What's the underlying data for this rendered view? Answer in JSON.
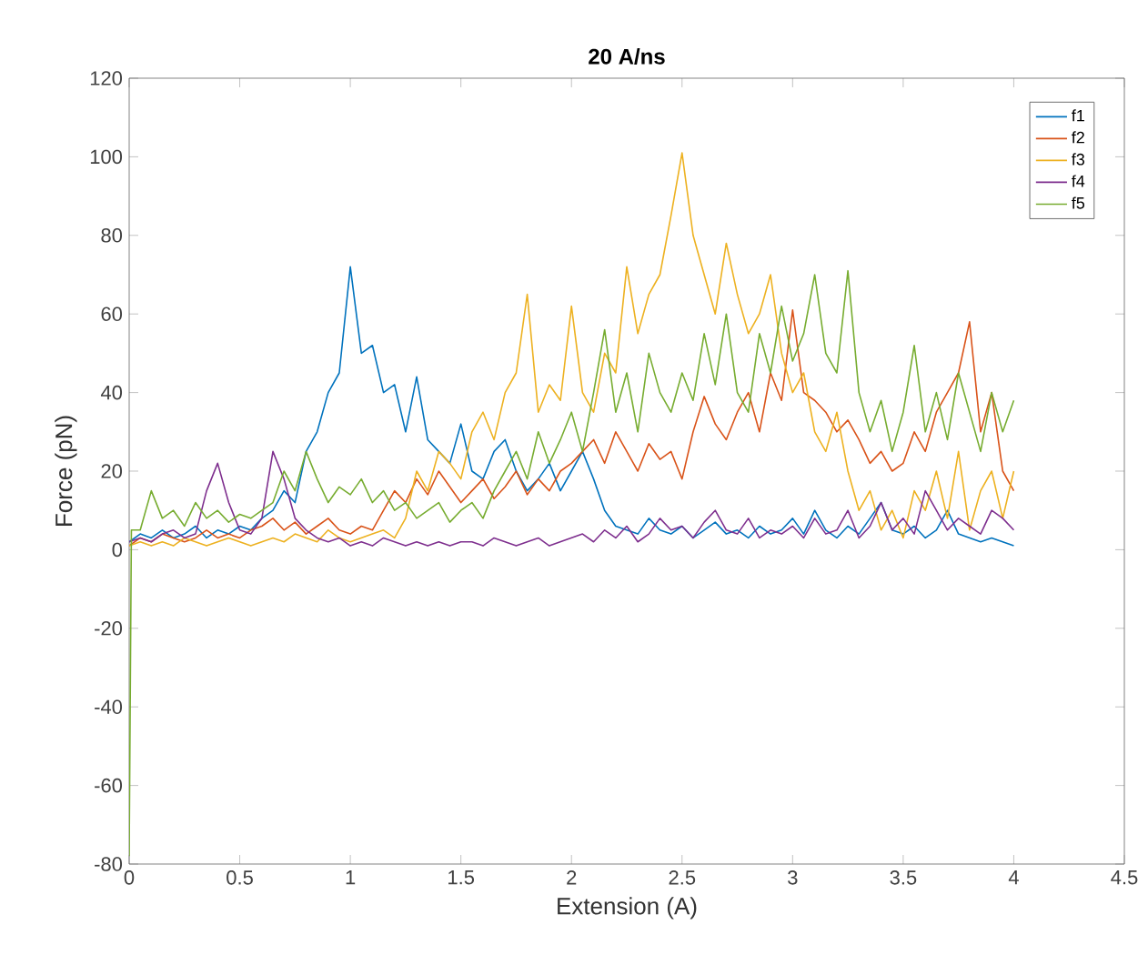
{
  "chart_data": {
    "type": "line",
    "title": "20 A/ns",
    "xlabel": "Extension (A)",
    "ylabel": "Force (pN)",
    "xlim": [
      0,
      4.5
    ],
    "ylim": [
      -80,
      120
    ],
    "xticks": [
      0,
      0.5,
      1,
      1.5,
      2,
      2.5,
      3,
      3.5,
      4,
      4.5
    ],
    "yticks": [
      -80,
      -60,
      -40,
      -20,
      0,
      20,
      40,
      60,
      80,
      100,
      120
    ],
    "grid": false,
    "legend": "top right",
    "marker": "none",
    "line_style": "solid",
    "x": [
      0,
      0.05,
      0.1,
      0.15,
      0.2,
      0.25,
      0.3,
      0.35,
      0.4,
      0.45,
      0.5,
      0.55,
      0.6,
      0.65,
      0.7,
      0.75,
      0.8,
      0.85,
      0.9,
      0.95,
      1,
      1.05,
      1.1,
      1.15,
      1.2,
      1.25,
      1.3,
      1.35,
      1.4,
      1.45,
      1.5,
      1.55,
      1.6,
      1.65,
      1.7,
      1.75,
      1.8,
      1.85,
      1.9,
      1.95,
      2,
      2.05,
      2.1,
      2.15,
      2.2,
      2.25,
      2.3,
      2.35,
      2.4,
      2.45,
      2.5,
      2.55,
      2.6,
      2.65,
      2.7,
      2.75,
      2.8,
      2.85,
      2.9,
      2.95,
      3,
      3.05,
      3.1,
      3.15,
      3.2,
      3.25,
      3.3,
      3.35,
      3.4,
      3.45,
      3.5,
      3.55,
      3.6,
      3.65,
      3.7,
      3.75,
      3.8,
      3.85,
      3.9,
      3.95,
      4
    ],
    "series": [
      {
        "name": "f1",
        "color": "#0072bd",
        "values": [
          2,
          4,
          3,
          5,
          3,
          4,
          6,
          3,
          5,
          4,
          6,
          5,
          8,
          10,
          15,
          12,
          25,
          30,
          40,
          45,
          72,
          50,
          52,
          40,
          42,
          30,
          44,
          28,
          25,
          22,
          32,
          20,
          18,
          25,
          28,
          20,
          15,
          18,
          22,
          15,
          20,
          25,
          18,
          10,
          6,
          5,
          4,
          8,
          5,
          4,
          6,
          3,
          5,
          7,
          4,
          5,
          3,
          6,
          4,
          5,
          8,
          4,
          10,
          5,
          3,
          6,
          4,
          8,
          12,
          5,
          4,
          6,
          3,
          5,
          10,
          4,
          3,
          2,
          3,
          2,
          1
        ]
      },
      {
        "name": "f2",
        "color": "#d95319",
        "values": [
          1,
          3,
          2,
          4,
          3,
          2,
          3,
          5,
          3,
          4,
          3,
          5,
          6,
          8,
          5,
          7,
          4,
          6,
          8,
          5,
          4,
          6,
          5,
          10,
          15,
          12,
          18,
          14,
          20,
          16,
          12,
          15,
          18,
          13,
          16,
          20,
          14,
          18,
          15,
          20,
          22,
          25,
          28,
          22,
          30,
          25,
          20,
          27,
          23,
          25,
          18,
          30,
          39,
          32,
          28,
          35,
          40,
          30,
          45,
          38,
          61,
          40,
          38,
          35,
          30,
          33,
          28,
          22,
          25,
          20,
          22,
          30,
          25,
          35,
          40,
          45,
          58,
          30,
          40,
          20,
          15
        ]
      },
      {
        "name": "f3",
        "color": "#edb120",
        "values": [
          1,
          2,
          1,
          2,
          1,
          3,
          2,
          1,
          2,
          3,
          2,
          1,
          2,
          3,
          2,
          4,
          3,
          2,
          5,
          3,
          2,
          3,
          4,
          5,
          3,
          8,
          20,
          15,
          25,
          22,
          18,
          30,
          35,
          28,
          40,
          45,
          65,
          35,
          42,
          38,
          62,
          40,
          35,
          50,
          45,
          72,
          55,
          65,
          70,
          85,
          101,
          80,
          70,
          60,
          78,
          65,
          55,
          60,
          70,
          50,
          40,
          45,
          30,
          25,
          35,
          20,
          10,
          15,
          5,
          10,
          3,
          15,
          10,
          20,
          8,
          25,
          5,
          15,
          20,
          8,
          20
        ]
      },
      {
        "name": "f4",
        "color": "#7e2f8e",
        "values": [
          2,
          3,
          2,
          4,
          5,
          3,
          4,
          15,
          22,
          12,
          5,
          4,
          8,
          25,
          18,
          8,
          5,
          3,
          2,
          3,
          1,
          2,
          1,
          3,
          2,
          1,
          2,
          1,
          2,
          1,
          2,
          2,
          1,
          3,
          2,
          1,
          2,
          3,
          1,
          2,
          3,
          4,
          2,
          5,
          3,
          6,
          2,
          4,
          8,
          5,
          6,
          3,
          7,
          10,
          5,
          4,
          8,
          3,
          5,
          4,
          6,
          3,
          8,
          4,
          5,
          10,
          3,
          6,
          12,
          5,
          8,
          4,
          15,
          10,
          5,
          8,
          6,
          4,
          10,
          8,
          5
        ]
      },
      {
        "name": "f5",
        "color": "#77ac30",
        "x": [
          0,
          0.01,
          0.05,
          0.1,
          0.15,
          0.2,
          0.25,
          0.3,
          0.35,
          0.4,
          0.45,
          0.5,
          0.55,
          0.6,
          0.65,
          0.7,
          0.75,
          0.8,
          0.85,
          0.9,
          0.95,
          1,
          1.05,
          1.1,
          1.15,
          1.2,
          1.25,
          1.3,
          1.35,
          1.4,
          1.45,
          1.5,
          1.55,
          1.6,
          1.65,
          1.7,
          1.75,
          1.8,
          1.85,
          1.9,
          1.95,
          2,
          2.05,
          2.1,
          2.15,
          2.2,
          2.25,
          2.3,
          2.35,
          2.4,
          2.45,
          2.5,
          2.55,
          2.6,
          2.65,
          2.7,
          2.75,
          2.8,
          2.85,
          2.9,
          2.95,
          3,
          3.05,
          3.1,
          3.15,
          3.2,
          3.25,
          3.3,
          3.35,
          3.4,
          3.45,
          3.5,
          3.55,
          3.6,
          3.65,
          3.7,
          3.75,
          3.8,
          3.85,
          3.9,
          3.95,
          4
        ],
        "values": [
          -78,
          5,
          5,
          15,
          8,
          10,
          6,
          12,
          8,
          10,
          7,
          9,
          8,
          10,
          12,
          20,
          15,
          25,
          18,
          12,
          16,
          14,
          18,
          12,
          15,
          10,
          12,
          8,
          10,
          12,
          7,
          10,
          12,
          8,
          15,
          20,
          25,
          18,
          30,
          22,
          28,
          35,
          25,
          40,
          56,
          35,
          45,
          30,
          50,
          40,
          35,
          45,
          38,
          55,
          42,
          60,
          40,
          35,
          55,
          45,
          62,
          48,
          55,
          70,
          50,
          45,
          71,
          40,
          30,
          38,
          25,
          35,
          52,
          30,
          40,
          28,
          45,
          35,
          25,
          40,
          30,
          38
        ]
      }
    ]
  }
}
